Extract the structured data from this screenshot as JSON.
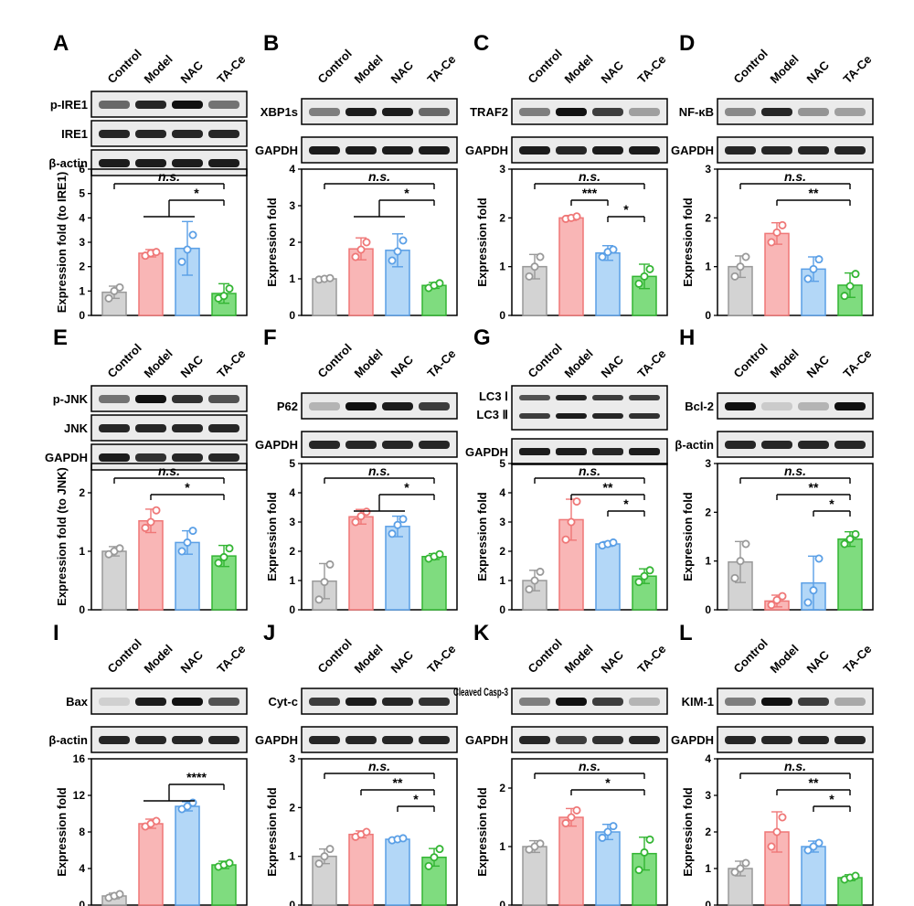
{
  "groups": [
    "Control",
    "Model",
    "NAC",
    "TA-Ce"
  ],
  "colors": {
    "bar_fill": [
      "#d3d3d3",
      "#f9b6b6",
      "#b3d7f7",
      "#7fdc7f"
    ],
    "bar_edge": [
      "#999999",
      "#ef7777",
      "#5a9fe6",
      "#33b533"
    ],
    "blot_bg": "#ebebeb",
    "band": "#111111"
  },
  "chart_data": [
    {
      "letter": "A",
      "type": "bar",
      "ylabel": "Expression fold (to IRE1)",
      "ylim": [
        0,
        6
      ],
      "yticks": [
        0,
        1,
        2,
        3,
        4,
        5,
        6
      ],
      "blots": [
        "p-IRE1",
        "IRE1",
        "β-actin"
      ],
      "values": [
        0.95,
        2.55,
        2.75,
        0.9
      ],
      "errors": [
        0.25,
        0.15,
        1.1,
        0.4
      ],
      "points": [
        [
          0.7,
          1.0,
          1.15
        ],
        [
          2.45,
          2.55,
          2.6
        ],
        [
          2.2,
          2.7,
          3.3
        ],
        [
          0.7,
          0.8,
          1.1
        ]
      ],
      "sig": [
        {
          "text": "n.s.",
          "from": 0,
          "to": 3
        },
        {
          "text": "*",
          "from": "1-2",
          "to": 3
        }
      ]
    },
    {
      "letter": "B",
      "type": "bar",
      "ylabel": "Expression fold",
      "ylim": [
        0,
        4
      ],
      "yticks": [
        0,
        1,
        2,
        3,
        4
      ],
      "blots": [
        "XBP1s",
        "GAPDH"
      ],
      "values": [
        1.0,
        1.82,
        1.78,
        0.82
      ],
      "errors": [
        0.03,
        0.3,
        0.45,
        0.08
      ],
      "points": [
        [
          0.98,
          1.0,
          1.02
        ],
        [
          1.6,
          1.8,
          2.0
        ],
        [
          1.5,
          1.75,
          2.05
        ],
        [
          0.75,
          0.82,
          0.88
        ]
      ],
      "sig": [
        {
          "text": "n.s.",
          "from": 0,
          "to": 3
        },
        {
          "text": "*",
          "from": "1-2",
          "to": 3
        }
      ]
    },
    {
      "letter": "C",
      "type": "bar",
      "ylabel": "Expression fold",
      "ylim": [
        0,
        3
      ],
      "yticks": [
        0,
        1,
        2,
        3
      ],
      "blots": [
        "TRAF2",
        "GAPDH"
      ],
      "values": [
        1.0,
        2.0,
        1.28,
        0.8
      ],
      "errors": [
        0.25,
        0.05,
        0.15,
        0.25
      ],
      "points": [
        [
          0.8,
          1.0,
          1.2
        ],
        [
          1.98,
          2.0,
          2.03
        ],
        [
          1.2,
          1.3,
          1.35
        ],
        [
          0.65,
          0.8,
          0.95
        ]
      ],
      "sig": [
        {
          "text": "n.s.",
          "from": 0,
          "to": 3
        },
        {
          "text": "***",
          "from": 1,
          "to": 2
        },
        {
          "text": "*",
          "from": 2,
          "to": 3
        }
      ]
    },
    {
      "letter": "D",
      "type": "bar",
      "ylabel": "Expression fold",
      "ylim": [
        0,
        3
      ],
      "yticks": [
        0,
        1,
        2,
        3
      ],
      "blots": [
        "NF-κB",
        "GAPDH"
      ],
      "values": [
        1.0,
        1.68,
        0.95,
        0.62
      ],
      "errors": [
        0.22,
        0.22,
        0.25,
        0.25
      ],
      "points": [
        [
          0.8,
          1.0,
          1.2
        ],
        [
          1.5,
          1.7,
          1.85
        ],
        [
          0.75,
          0.95,
          1.15
        ],
        [
          0.4,
          0.6,
          0.85
        ]
      ],
      "sig": [
        {
          "text": "n.s.",
          "from": 0,
          "to": 3
        },
        {
          "text": "**",
          "from": 1,
          "to": 3
        }
      ]
    },
    {
      "letter": "E",
      "type": "bar",
      "ylabel": "Expression fold (to JNK)",
      "ylim": [
        0,
        2.5
      ],
      "yticks": [
        0,
        1,
        2
      ],
      "yticklabels": [
        "0",
        "1",
        "2"
      ],
      "blots": [
        "p-JNK",
        "JNK",
        "GAPDH"
      ],
      "values": [
        1.0,
        1.52,
        1.15,
        0.92
      ],
      "errors": [
        0.08,
        0.2,
        0.2,
        0.18
      ],
      "points": [
        [
          0.95,
          1.0,
          1.05
        ],
        [
          1.4,
          1.5,
          1.7
        ],
        [
          1.0,
          1.15,
          1.35
        ],
        [
          0.8,
          0.9,
          1.05
        ]
      ],
      "sig": [
        {
          "text": "n.s.",
          "from": 0,
          "to": 3
        },
        {
          "text": "*",
          "from": 1,
          "to": 3
        }
      ]
    },
    {
      "letter": "F",
      "type": "bar",
      "ylabel": "Expression fold",
      "ylim": [
        0,
        5
      ],
      "yticks": [
        0,
        1,
        2,
        3,
        4,
        5
      ],
      "blots": [
        "P62",
        "GAPDH"
      ],
      "values": [
        0.98,
        3.18,
        2.85,
        1.82
      ],
      "errors": [
        0.6,
        0.25,
        0.35,
        0.1
      ],
      "points": [
        [
          0.35,
          0.95,
          1.55
        ],
        [
          3.0,
          3.2,
          3.35
        ],
        [
          2.6,
          2.9,
          3.1
        ],
        [
          1.75,
          1.82,
          1.9
        ]
      ],
      "sig": [
        {
          "text": "n.s.",
          "from": 0,
          "to": 3
        },
        {
          "text": "*",
          "from": "1-2",
          "to": 3
        }
      ]
    },
    {
      "letter": "G",
      "type": "bar",
      "ylabel": "Expression fold",
      "ylim": [
        0,
        5
      ],
      "yticks": [
        0,
        1,
        2,
        3,
        4,
        5
      ],
      "blots": [
        "LC3 Ⅰ",
        "LC3 Ⅱ",
        "GAPDH"
      ],
      "values": [
        1.0,
        3.08,
        2.25,
        1.15
      ],
      "errors": [
        0.35,
        0.7,
        0.08,
        0.25
      ],
      "points": [
        [
          0.7,
          1.0,
          1.3
        ],
        [
          2.4,
          3.0,
          3.7
        ],
        [
          2.2,
          2.25,
          2.3
        ],
        [
          0.95,
          1.15,
          1.35
        ]
      ],
      "sig": [
        {
          "text": "n.s.",
          "from": 0,
          "to": 3
        },
        {
          "text": "**",
          "from": 1,
          "to": 3
        },
        {
          "text": "*",
          "from": 2,
          "to": 3
        }
      ]
    },
    {
      "letter": "H",
      "type": "bar",
      "ylabel": "Expression fold",
      "ylim": [
        0,
        3
      ],
      "yticks": [
        0,
        1,
        2,
        3
      ],
      "blots": [
        "Bcl-2",
        "β-actin"
      ],
      "values": [
        0.98,
        0.18,
        0.55,
        1.45
      ],
      "errors": [
        0.42,
        0.12,
        0.55,
        0.15
      ],
      "points": [
        [
          0.65,
          1.0,
          1.35
        ],
        [
          0.1,
          0.2,
          0.28
        ],
        [
          0.15,
          0.4,
          1.05
        ],
        [
          1.35,
          1.45,
          1.55
        ]
      ],
      "sig": [
        {
          "text": "n.s.",
          "from": 0,
          "to": 3
        },
        {
          "text": "**",
          "from": 1,
          "to": 3
        },
        {
          "text": "*",
          "from": 2,
          "to": 3
        }
      ]
    },
    {
      "letter": "I",
      "type": "bar",
      "ylabel": "Expression fold",
      "ylim": [
        0,
        16
      ],
      "yticks": [
        0,
        4,
        8,
        12,
        16
      ],
      "blots": [
        "Bax",
        "β-actin"
      ],
      "values": [
        1.0,
        8.9,
        10.8,
        4.4
      ],
      "errors": [
        0.3,
        0.5,
        0.5,
        0.4
      ],
      "points": [
        [
          0.8,
          1.0,
          1.2
        ],
        [
          8.6,
          8.9,
          9.2
        ],
        [
          10.5,
          10.8,
          11.2
        ],
        [
          4.2,
          4.4,
          4.6
        ]
      ],
      "sig": [
        {
          "text": "****",
          "from": "1-2",
          "to": 3
        }
      ]
    },
    {
      "letter": "J",
      "type": "bar",
      "ylabel": "Expression fold",
      "ylim": [
        0,
        3
      ],
      "yticks": [
        0,
        1,
        2,
        3
      ],
      "blots": [
        "Cyt-c",
        "GAPDH"
      ],
      "values": [
        1.0,
        1.45,
        1.35,
        0.98
      ],
      "errors": [
        0.15,
        0.07,
        0.03,
        0.18
      ],
      "points": [
        [
          0.85,
          1.0,
          1.15
        ],
        [
          1.4,
          1.45,
          1.5
        ],
        [
          1.33,
          1.35,
          1.37
        ],
        [
          0.8,
          0.98,
          1.15
        ]
      ],
      "sig": [
        {
          "text": "n.s.",
          "from": 0,
          "to": 3
        },
        {
          "text": "**",
          "from": 1,
          "to": 3
        },
        {
          "text": "*",
          "from": 2,
          "to": 3
        }
      ]
    },
    {
      "letter": "K",
      "type": "bar",
      "ylabel": "Expression fold",
      "ylim": [
        0,
        2.5
      ],
      "yticks": [
        0,
        1,
        2
      ],
      "blots": [
        "Cleaved Casp-3",
        "GAPDH"
      ],
      "values": [
        1.0,
        1.5,
        1.25,
        0.88
      ],
      "errors": [
        0.1,
        0.15,
        0.13,
        0.28
      ],
      "points": [
        [
          0.95,
          1.0,
          1.05
        ],
        [
          1.4,
          1.5,
          1.62
        ],
        [
          1.15,
          1.25,
          1.35
        ],
        [
          0.6,
          0.9,
          1.12
        ]
      ],
      "sig": [
        {
          "text": "n.s.",
          "from": 0,
          "to": 3
        },
        {
          "text": "*",
          "from": 1,
          "to": 3
        }
      ]
    },
    {
      "letter": "L",
      "type": "bar",
      "ylabel": "Expression fold",
      "ylim": [
        0,
        4
      ],
      "yticks": [
        0,
        1,
        2,
        3,
        4
      ],
      "blots": [
        "KIM-1",
        "GAPDH"
      ],
      "values": [
        1.0,
        2.0,
        1.6,
        0.75
      ],
      "errors": [
        0.2,
        0.55,
        0.15,
        0.08
      ],
      "points": [
        [
          0.9,
          1.0,
          1.15
        ],
        [
          1.6,
          2.0,
          2.4
        ],
        [
          1.5,
          1.6,
          1.7
        ],
        [
          0.7,
          0.75,
          0.8
        ]
      ],
      "sig": [
        {
          "text": "n.s.",
          "from": 0,
          "to": 3
        },
        {
          "text": "**",
          "from": 1,
          "to": 3
        },
        {
          "text": "*",
          "from": 2,
          "to": 3
        }
      ]
    }
  ]
}
